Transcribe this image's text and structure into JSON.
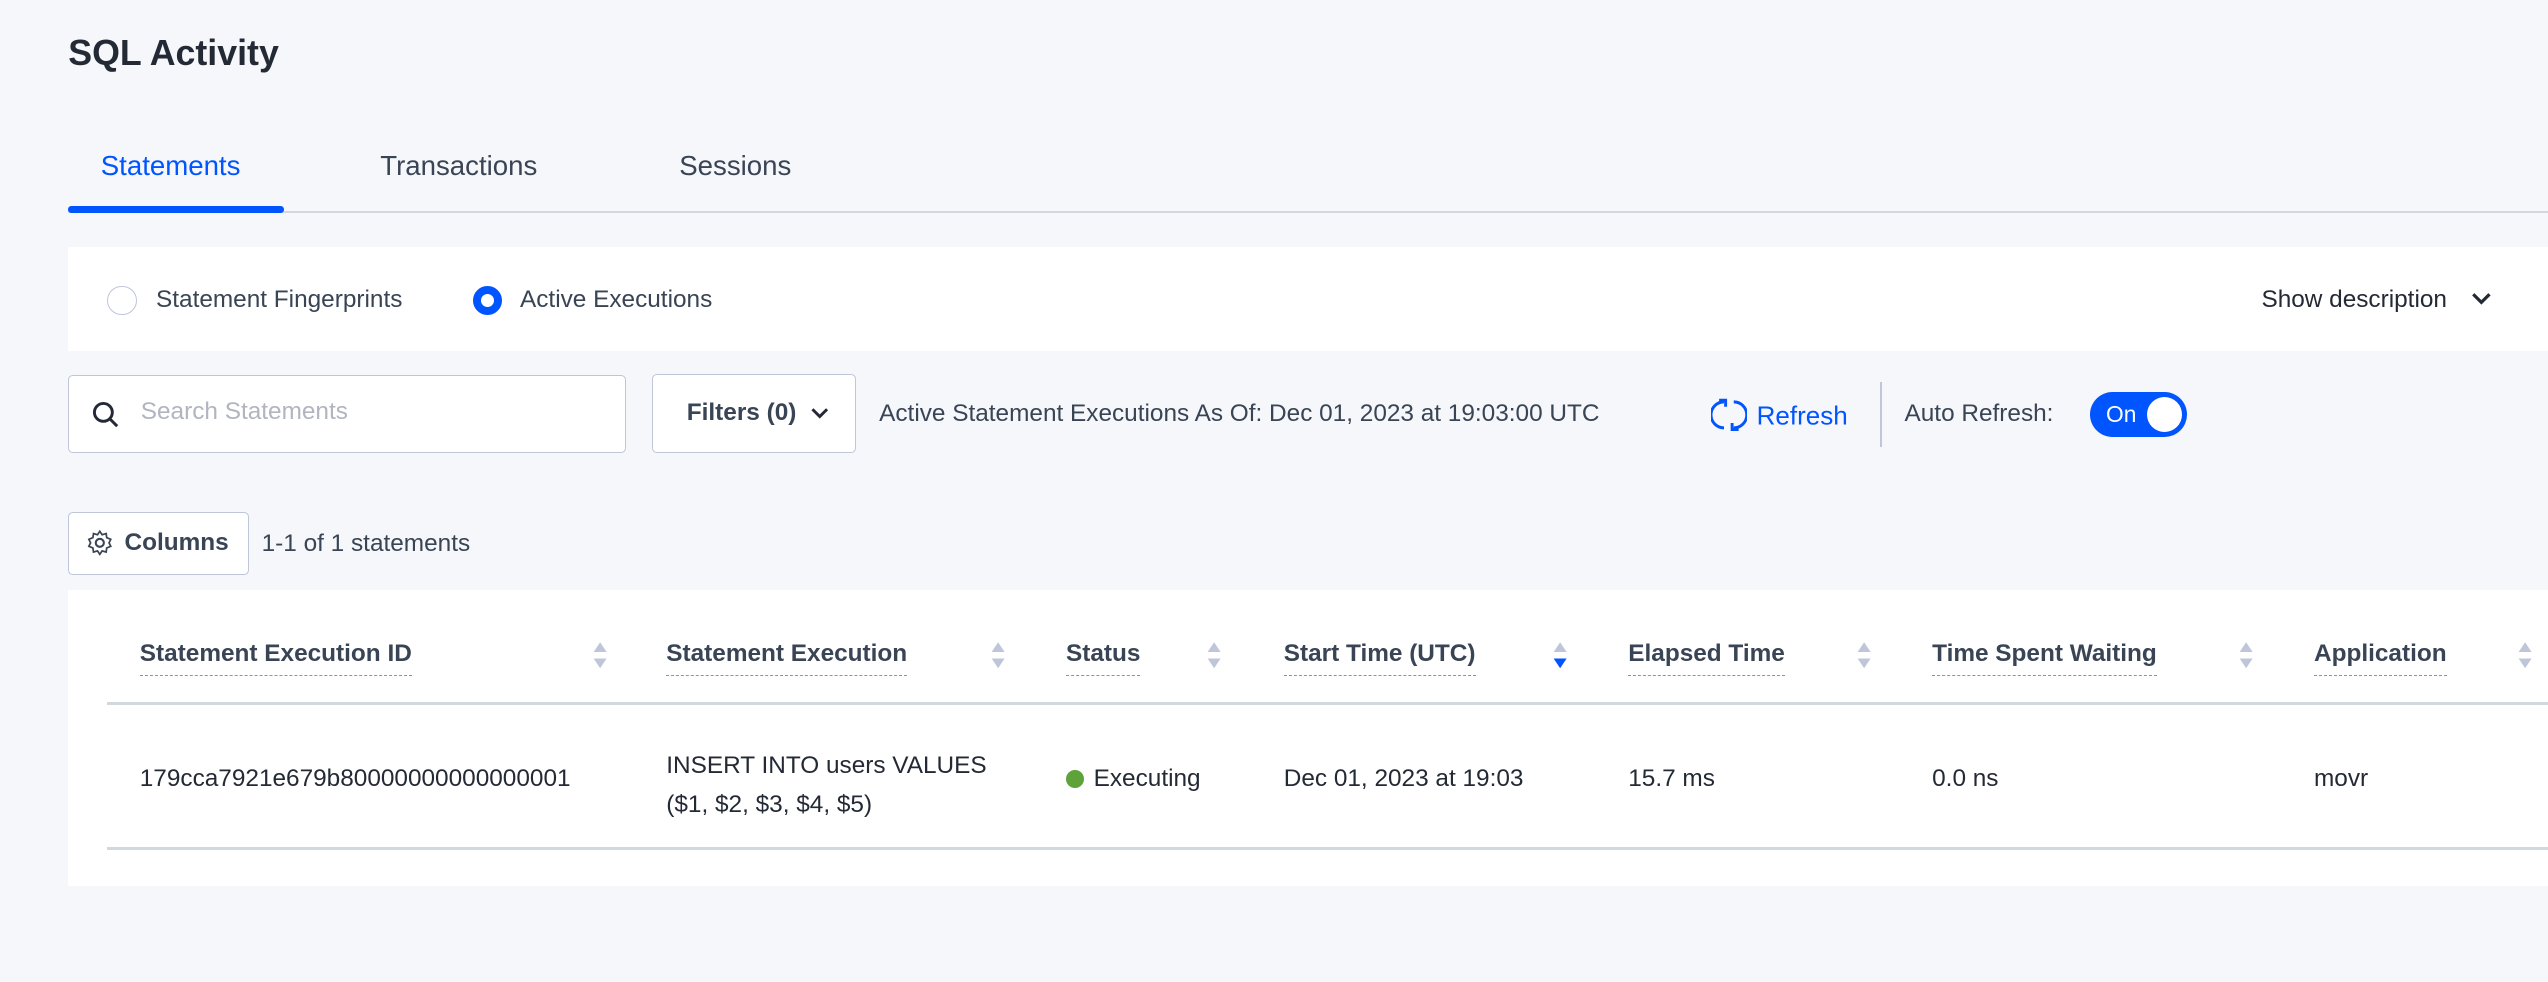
{
  "page": {
    "title": "SQL Activity"
  },
  "tabs": [
    {
      "label": "Statements",
      "active": true
    },
    {
      "label": "Transactions"
    },
    {
      "label": "Sessions"
    }
  ],
  "view_toggle": {
    "options": [
      {
        "label": "Statement Fingerprints",
        "selected": false
      },
      {
        "label": "Active Executions",
        "selected": true
      }
    ],
    "show_description": "Show description"
  },
  "toolbar": {
    "search_placeholder": "Search Statements",
    "filters_label": "Filters (0)",
    "as_of": "Active Statement Executions As Of: Dec 01, 2023 at 19:03:00 UTC",
    "refresh_label": "Refresh",
    "auto_refresh_label": "Auto Refresh:",
    "auto_refresh_state": "On",
    "columns_label": "Columns",
    "count": "1-1 of 1 statements"
  },
  "colors": {
    "accent": "#0055ff",
    "executing": "#5ea33a"
  },
  "table": {
    "headers": [
      "Statement Execution ID",
      "Statement Execution",
      "Status",
      "Start Time (UTC)",
      "Elapsed Time",
      "Time Spent Waiting",
      "Application"
    ],
    "sorted_column": "Start Time (UTC)",
    "sort_direction": "descending",
    "rows": [
      {
        "id": "179cca7921e679b80000000000000001",
        "statement_line1": "INSERT INTO users VALUES",
        "statement_line2": "($1, $2, $3, $4, $5)",
        "status": "Executing",
        "start_time": "Dec 01, 2023 at 19:03",
        "elapsed": "15.7 ms",
        "waiting": "0.0 ns",
        "application": "movr"
      }
    ]
  }
}
